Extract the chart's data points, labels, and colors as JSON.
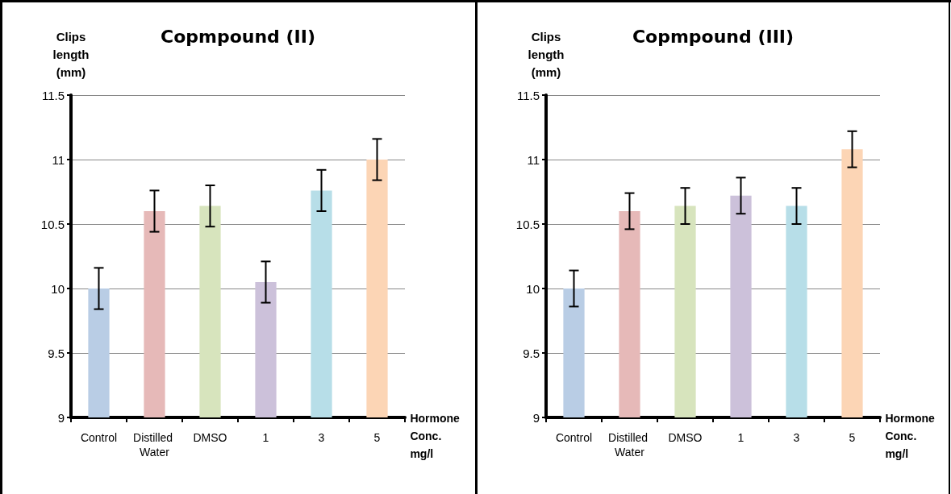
{
  "chart_data": [
    {
      "type": "bar",
      "title": "Copmpound (II)",
      "xlabel": "Hormone Conc. mg/l",
      "ylabel": "Clips length (mm)",
      "categories": [
        "Control",
        "Distilled Water",
        "DMSO",
        "1",
        "3",
        "5"
      ],
      "values": [
        10.0,
        10.6,
        10.64,
        10.05,
        10.76,
        11.0
      ],
      "errors": [
        0.16,
        0.16,
        0.16,
        0.16,
        0.16,
        0.16
      ],
      "colors": [
        "#b9cde5",
        "#e6b9b8",
        "#d7e4bd",
        "#ccc1da",
        "#b7dee8",
        "#fcd5b5"
      ],
      "ylim": [
        9,
        11.5
      ],
      "yticks": [
        9,
        9.5,
        10,
        10.5,
        11,
        11.5
      ],
      "grid": "y"
    },
    {
      "type": "bar",
      "title": "Copmpound (III)",
      "xlabel": "Hormone Conc. mg/l",
      "ylabel": "Clips length (mm)",
      "categories": [
        "Control",
        "Distilled Water",
        "DMSO",
        "1",
        "3",
        "5"
      ],
      "values": [
        10.0,
        10.6,
        10.64,
        10.72,
        10.64,
        11.08
      ],
      "errors": [
        0.14,
        0.14,
        0.14,
        0.14,
        0.14,
        0.14
      ],
      "colors": [
        "#b9cde5",
        "#e6b9b8",
        "#d7e4bd",
        "#ccc1da",
        "#b7dee8",
        "#fcd5b5"
      ],
      "ylim": [
        9,
        11.5
      ],
      "yticks": [
        9,
        9.5,
        10,
        10.5,
        11,
        11.5
      ],
      "grid": "y"
    }
  ]
}
